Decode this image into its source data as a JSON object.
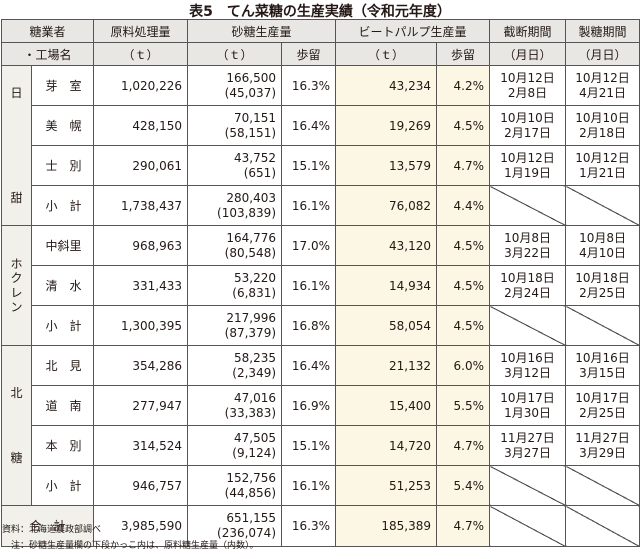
{
  "title": "表5　てん菜糖の生産実績（令和元年度）",
  "headers": {
    "col1_top": "糖業者",
    "col1_bottom": "・工場名",
    "raw_top": "原料処理量",
    "raw_unit": "（ｔ）",
    "sugar_top": "砂糖生産量",
    "sugar_unit": "（ｔ）",
    "sugar_yield": "歩留",
    "pulp_top": "ビートパルプ生産量",
    "pulp_unit": "（ｔ）",
    "pulp_yield": "歩留",
    "cut_top": "截断期間",
    "cut_unit": "（月日）",
    "mfg_top": "製糖期間",
    "mfg_unit": "（月日）"
  },
  "groups": [
    {
      "name": "日甜",
      "name_lines": [
        "日",
        "甜"
      ],
      "rows": [
        {
          "factory": "芽　室",
          "raw": "1,020,226",
          "sugar": "166,500",
          "sugar_sub": "(45,037)",
          "sugar_yield": "16.3%",
          "pulp": "43,234",
          "pulp_yield": "4.2%",
          "cut_start": "10月12日",
          "cut_end": "2月8日",
          "mfg_start": "10月12日",
          "mfg_end": "4月21日"
        },
        {
          "factory": "美　幌",
          "raw": "428,150",
          "sugar": "70,151",
          "sugar_sub": "(58,151)",
          "sugar_yield": "16.4%",
          "pulp": "19,269",
          "pulp_yield": "4.5%",
          "cut_start": "10月10日",
          "cut_end": "2月17日",
          "mfg_start": "10月10日",
          "mfg_end": "2月18日"
        },
        {
          "factory": "士　別",
          "raw": "290,061",
          "sugar": "43,752",
          "sugar_sub": "(651)",
          "sugar_yield": "15.1%",
          "pulp": "13,579",
          "pulp_yield": "4.7%",
          "cut_start": "10月12日",
          "cut_end": "1月19日",
          "mfg_start": "10月12日",
          "mfg_end": "1月21日"
        },
        {
          "factory": "小　計",
          "raw": "1,738,437",
          "sugar": "280,403",
          "sugar_sub": "(103,839)",
          "sugar_yield": "16.1%",
          "pulp": "76,082",
          "pulp_yield": "4.4%",
          "subtotal": true
        }
      ]
    },
    {
      "name": "ホクレン",
      "name_lines": [
        "ホ",
        "ク",
        "レ",
        "ン"
      ],
      "rows": [
        {
          "factory": "中斜里",
          "raw": "968,963",
          "sugar": "164,776",
          "sugar_sub": "(80,548)",
          "sugar_yield": "17.0%",
          "pulp": "43,120",
          "pulp_yield": "4.5%",
          "cut_start": "10月8日",
          "cut_end": "3月22日",
          "mfg_start": "10月8日",
          "mfg_end": "4月10日"
        },
        {
          "factory": "清　水",
          "raw": "331,433",
          "sugar": "53,220",
          "sugar_sub": "(6,831)",
          "sugar_yield": "16.1%",
          "pulp": "14,934",
          "pulp_yield": "4.5%",
          "cut_start": "10月18日",
          "cut_end": "2月24日",
          "mfg_start": "10月18日",
          "mfg_end": "2月25日"
        },
        {
          "factory": "小　計",
          "raw": "1,300,395",
          "sugar": "217,996",
          "sugar_sub": "(87,379)",
          "sugar_yield": "16.8%",
          "pulp": "58,054",
          "pulp_yield": "4.5%",
          "subtotal": true
        }
      ]
    },
    {
      "name": "北糖",
      "name_lines": [
        "北",
        "糖"
      ],
      "rows": [
        {
          "factory": "北　見",
          "raw": "354,286",
          "sugar": "58,235",
          "sugar_sub": "(2,349)",
          "sugar_yield": "16.4%",
          "pulp": "21,132",
          "pulp_yield": "6.0%",
          "cut_start": "10月16日",
          "cut_end": "3月12日",
          "mfg_start": "10月16日",
          "mfg_end": "3月15日"
        },
        {
          "factory": "道　南",
          "raw": "277,947",
          "sugar": "47,016",
          "sugar_sub": "(33,383)",
          "sugar_yield": "16.9%",
          "pulp": "15,400",
          "pulp_yield": "5.5%",
          "cut_start": "10月17日",
          "cut_end": "1月30日",
          "mfg_start": "10月17日",
          "mfg_end": "2月25日"
        },
        {
          "factory": "本　別",
          "raw": "314,524",
          "sugar": "47,505",
          "sugar_sub": "(9,124)",
          "sugar_yield": "15.1%",
          "pulp": "14,720",
          "pulp_yield": "4.7%",
          "cut_start": "11月27日",
          "cut_end": "3月27日",
          "mfg_start": "11月27日",
          "mfg_end": "3月29日"
        },
        {
          "factory": "小　計",
          "raw": "946,757",
          "sugar": "152,756",
          "sugar_sub": "(44,856)",
          "sugar_yield": "16.1%",
          "pulp": "51,253",
          "pulp_yield": "5.4%",
          "subtotal": true
        }
      ]
    }
  ],
  "total": {
    "label": "合　計",
    "raw": "3,985,590",
    "sugar": "651,155",
    "sugar_sub": "(236,074)",
    "sugar_yield": "16.3%",
    "pulp": "185,389",
    "pulp_yield": "4.7%"
  },
  "notes": {
    "source": "資料：北海道農政部調べ",
    "note": "　注：砂糖生産量欄の下段かっこ内は、原料糖生産量（内数）。"
  },
  "colors": {
    "header_bg": "#e8e7e3",
    "group_bg": "#f1f0ea",
    "highlight_bg": "#fbf7e4",
    "border": "#555555",
    "text": "#231815"
  }
}
